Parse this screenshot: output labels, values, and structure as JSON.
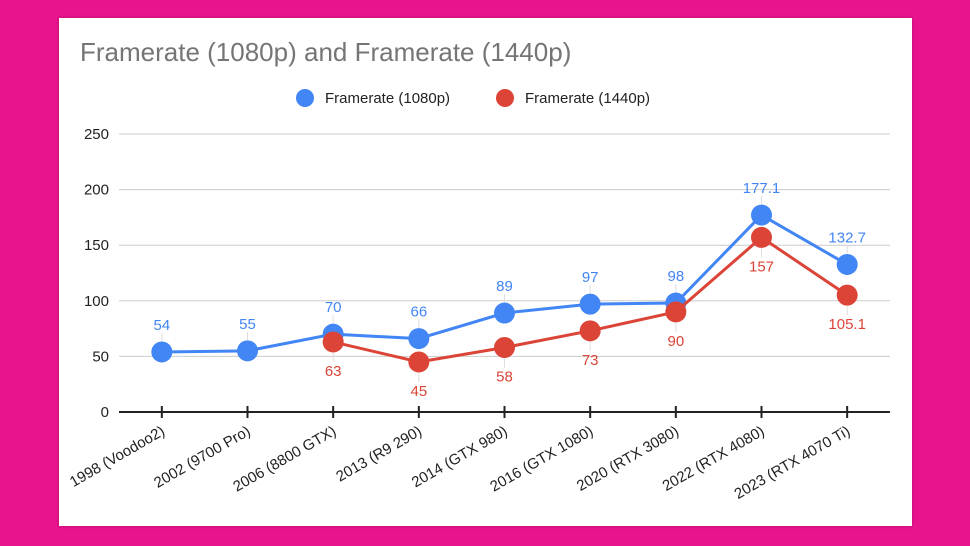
{
  "chart_data": {
    "type": "line",
    "title": "Framerate (1080p) and Framerate (1440p)",
    "categories": [
      "1998 (Voodoo2)",
      "2002 (9700 Pro)",
      "2006 (8800 GTX)",
      "2013 (R9 290)",
      "2014 (GTX 980)",
      "2016 (GTX 1080)",
      "2020 (RTX 3080)",
      "2022 (RTX 4080)",
      "2023 (RTX 4070 Ti)"
    ],
    "series": [
      {
        "name": "Framerate (1080p)",
        "color": "#4285f4",
        "values": [
          54,
          55,
          70,
          66,
          89,
          97,
          98,
          177.1,
          132.7
        ],
        "labels": [
          "54",
          "55",
          "70",
          "66",
          "89",
          "97",
          "98",
          "177.1",
          "132.7"
        ],
        "label_position": "above"
      },
      {
        "name": "Framerate (1440p)",
        "color": "#db4437",
        "values": [
          null,
          null,
          63,
          45,
          58,
          73,
          90,
          157,
          105.1
        ],
        "labels": [
          null,
          null,
          "63",
          "45",
          "58",
          "73",
          "90",
          "157",
          "105.1"
        ],
        "label_position": "below"
      }
    ],
    "ylim": [
      0,
      250
    ],
    "yticks": [
      "0",
      "50",
      "100",
      "150",
      "200",
      "250"
    ],
    "grid": true,
    "legend": "top",
    "background": "#ffffff",
    "page_background": "#e8138d"
  }
}
